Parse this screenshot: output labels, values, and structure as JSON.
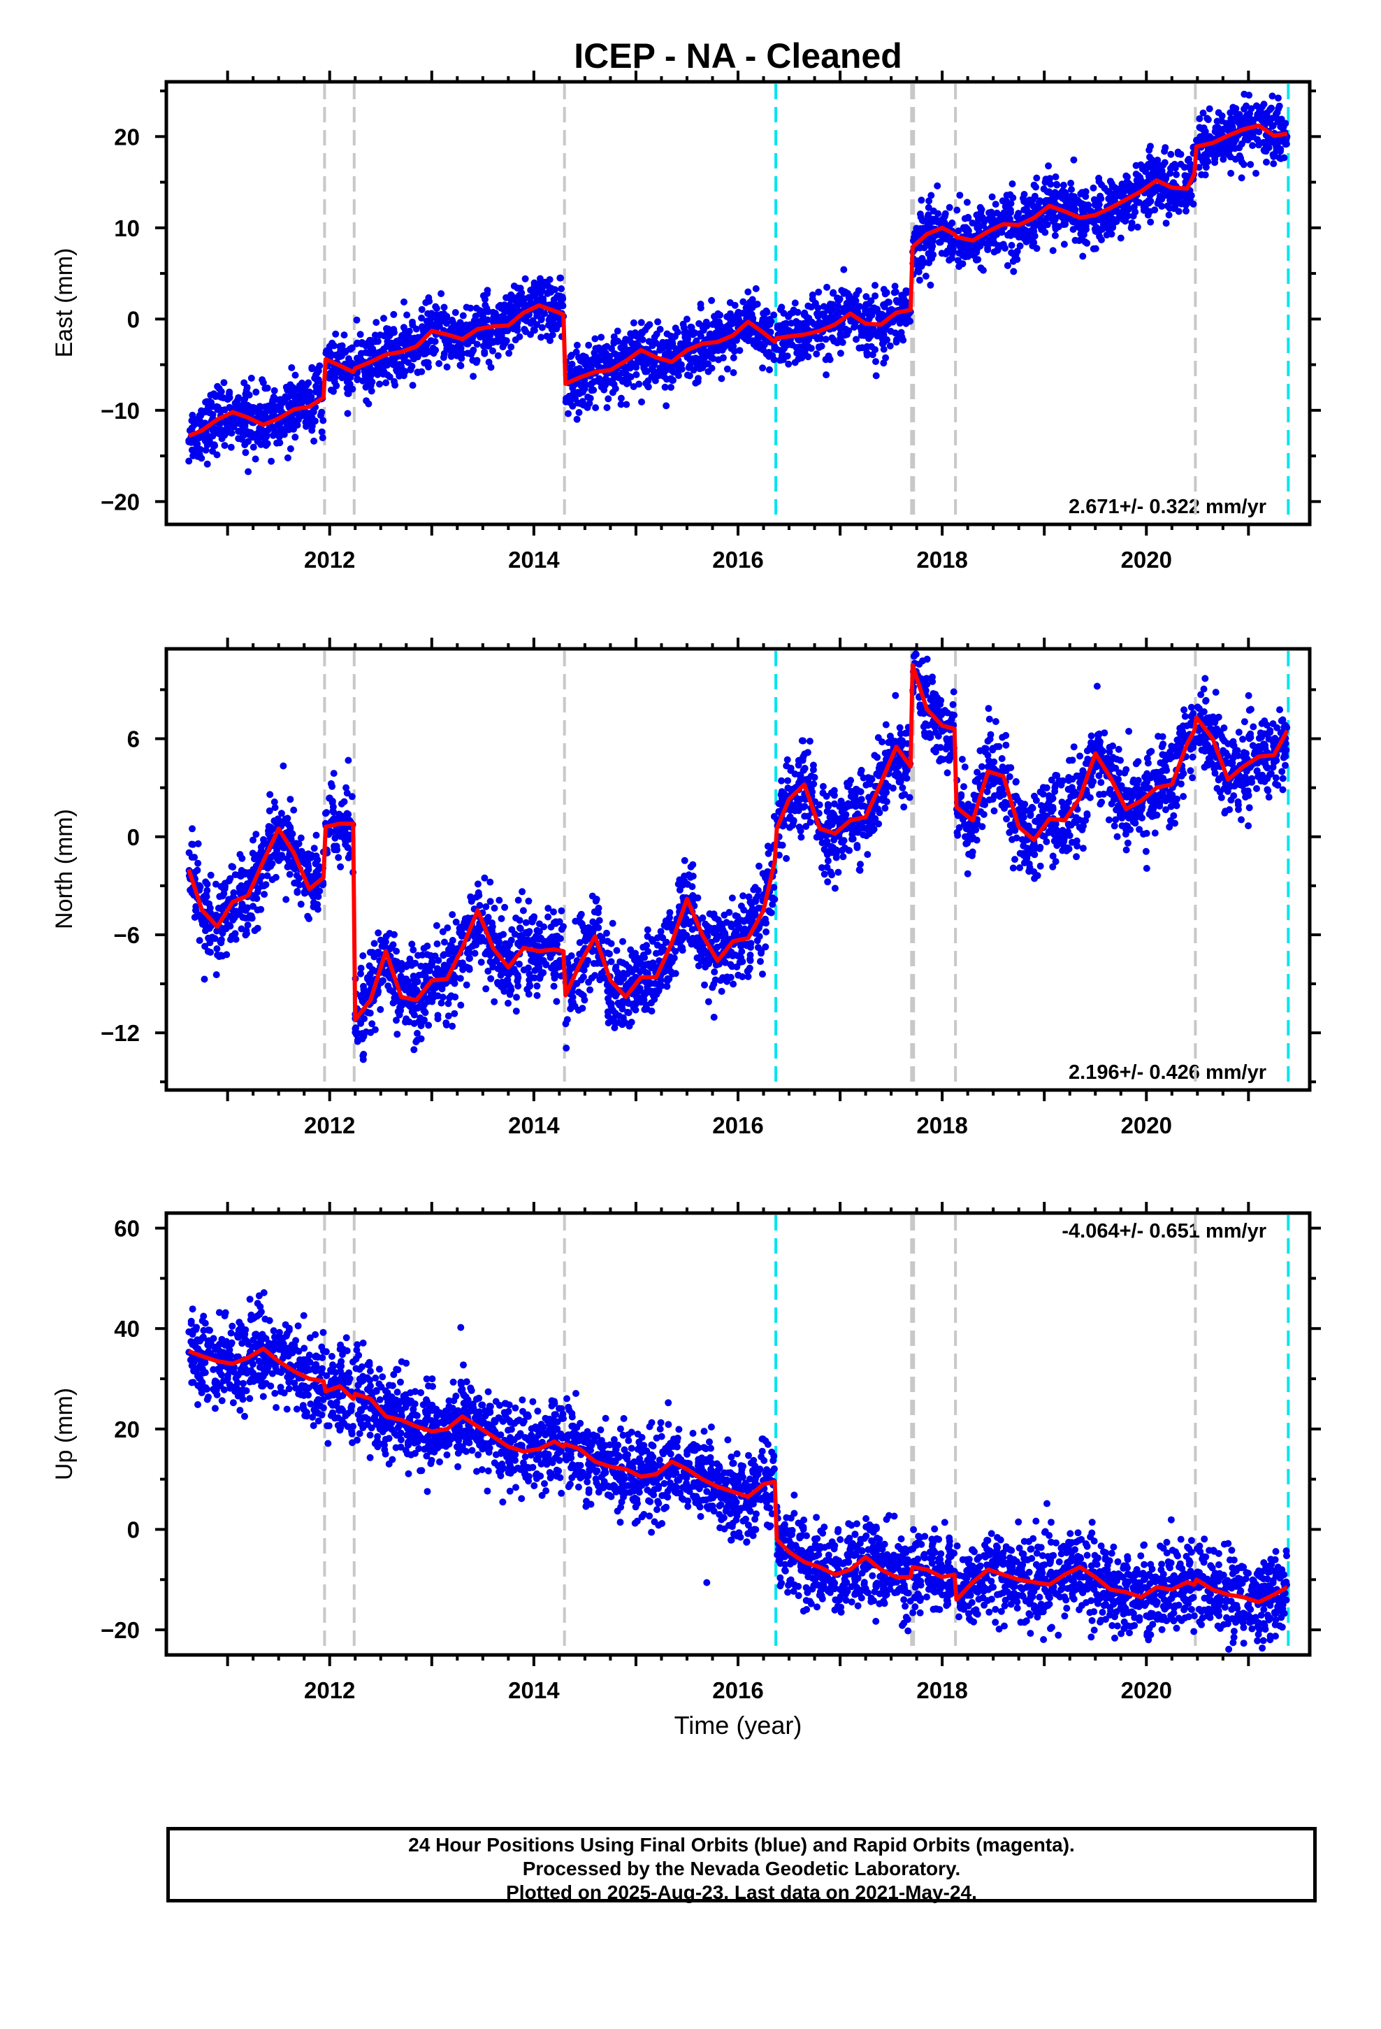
{
  "chart_data": {
    "type": "scatter",
    "title": "ICEP  - NA - Cleaned",
    "xlabel": "Time (year)",
    "xlim": [
      2010.4,
      2021.6
    ],
    "x_ticks": [
      "2012",
      "2014",
      "2016",
      "2018",
      "2020"
    ],
    "grid": false,
    "legend": "none",
    "colors": {
      "points": "#0000ee",
      "model": "#ff0000",
      "steps_gray": "#c8c8c8",
      "steps_cyan": "#00e5ee"
    },
    "vertical_lines": {
      "gray": [
        2011.95,
        2012.24,
        2014.3,
        2017.7,
        2017.72,
        2018.13,
        2020.48
      ],
      "cyan": [
        2016.37,
        2021.39
      ]
    },
    "panels": [
      {
        "name": "east",
        "ylabel": "East (mm)",
        "ylim": [
          -22.5,
          26
        ],
        "y_ticks": [
          "20",
          "10",
          "0",
          "−10",
          "−20"
        ],
        "rate": "2.671+/- 0.322 mm/yr",
        "model": {
          "x": [
            2010.62,
            2010.75,
            2010.9,
            2011.05,
            2011.2,
            2011.35,
            2011.5,
            2011.65,
            2011.8,
            2011.94,
            2011.96,
            2012.1,
            2012.23,
            2012.25,
            2012.4,
            2012.55,
            2012.7,
            2012.85,
            2013.0,
            2013.15,
            2013.3,
            2013.45,
            2013.6,
            2013.75,
            2013.9,
            2014.05,
            2014.2,
            2014.29,
            2014.31,
            2014.45,
            2014.6,
            2014.75,
            2014.9,
            2015.05,
            2015.2,
            2015.35,
            2015.5,
            2015.65,
            2015.8,
            2015.95,
            2016.1,
            2016.25,
            2016.36,
            2016.38,
            2016.5,
            2016.65,
            2016.8,
            2016.95,
            2017.1,
            2017.25,
            2017.4,
            2017.55,
            2017.69,
            2017.71,
            2017.85,
            2018.0,
            2018.12,
            2018.14,
            2018.3,
            2018.45,
            2018.6,
            2018.75,
            2018.9,
            2019.05,
            2019.2,
            2019.35,
            2019.5,
            2019.65,
            2019.8,
            2019.95,
            2020.1,
            2020.25,
            2020.4,
            2020.47,
            2020.49,
            2020.65,
            2020.8,
            2020.95,
            2021.1,
            2021.25,
            2021.38
          ],
          "y": [
            -12.8,
            -12.2,
            -11.0,
            -10.2,
            -10.8,
            -11.6,
            -10.9,
            -9.9,
            -9.6,
            -8.6,
            -4.4,
            -5.1,
            -5.8,
            -5.4,
            -4.7,
            -3.9,
            -3.6,
            -3.0,
            -1.3,
            -1.7,
            -2.2,
            -1.1,
            -0.8,
            -0.7,
            0.7,
            1.5,
            0.9,
            0.5,
            -7.1,
            -6.4,
            -5.8,
            -5.6,
            -4.6,
            -3.4,
            -4.2,
            -4.7,
            -3.4,
            -2.7,
            -2.5,
            -1.8,
            -0.3,
            -1.5,
            -2.5,
            -2.1,
            -1.9,
            -1.7,
            -1.3,
            -0.6,
            0.6,
            -0.5,
            -0.6,
            0.7,
            1.0,
            7.9,
            9.3,
            10.0,
            9.3,
            9.0,
            8.6,
            9.6,
            10.4,
            10.3,
            11.1,
            12.4,
            11.8,
            11.1,
            11.4,
            12.2,
            13.1,
            14.0,
            15.2,
            14.4,
            14.3,
            15.9,
            18.9,
            19.3,
            20.1,
            20.8,
            21.2,
            20.1,
            20.3
          ]
        }
      },
      {
        "name": "north",
        "ylabel": "North (mm)",
        "ylim": [
          -15.5,
          11.5
        ],
        "y_ticks": [
          "6",
          "0",
          "−6",
          "−12"
        ],
        "rate": "2.196+/- 0.426 mm/yr",
        "model": {
          "x": [
            2010.62,
            2010.75,
            2010.9,
            2011.05,
            2011.2,
            2011.35,
            2011.5,
            2011.65,
            2011.8,
            2011.94,
            2011.96,
            2012.1,
            2012.23,
            2012.25,
            2012.4,
            2012.55,
            2012.7,
            2012.85,
            2013.0,
            2013.15,
            2013.3,
            2013.45,
            2013.6,
            2013.75,
            2013.9,
            2014.05,
            2014.2,
            2014.29,
            2014.31,
            2014.45,
            2014.6,
            2014.75,
            2014.9,
            2015.05,
            2015.2,
            2015.35,
            2015.5,
            2015.65,
            2015.8,
            2015.95,
            2016.1,
            2016.25,
            2016.36,
            2016.38,
            2016.5,
            2016.65,
            2016.8,
            2016.95,
            2017.1,
            2017.25,
            2017.4,
            2017.55,
            2017.69,
            2017.71,
            2017.85,
            2018.0,
            2018.12,
            2018.14,
            2018.3,
            2018.45,
            2018.6,
            2018.75,
            2018.9,
            2019.05,
            2019.2,
            2019.35,
            2019.5,
            2019.65,
            2019.8,
            2019.95,
            2020.1,
            2020.25,
            2020.4,
            2020.47,
            2020.49,
            2020.65,
            2020.8,
            2020.95,
            2021.1,
            2021.25,
            2021.38
          ],
          "y": [
            -2.0,
            -4.5,
            -5.5,
            -4.0,
            -3.6,
            -1.5,
            0.5,
            -1.0,
            -3.2,
            -2.5,
            0.6,
            0.8,
            0.8,
            -11.2,
            -10.0,
            -7.0,
            -9.8,
            -10.0,
            -8.8,
            -8.7,
            -6.8,
            -4.5,
            -6.8,
            -8.0,
            -6.8,
            -7.0,
            -6.9,
            -7.0,
            -9.7,
            -7.8,
            -6.1,
            -8.8,
            -9.8,
            -8.6,
            -8.6,
            -6.5,
            -3.8,
            -6.0,
            -7.6,
            -6.4,
            -6.2,
            -4.5,
            -1.5,
            0.5,
            2.3,
            3.2,
            0.5,
            0.2,
            1.0,
            1.2,
            3.3,
            5.5,
            4.3,
            10.5,
            7.8,
            6.8,
            6.6,
            1.8,
            1.0,
            4.0,
            3.7,
            0.6,
            -0.2,
            1.1,
            1.0,
            2.4,
            5.1,
            3.6,
            1.7,
            2.2,
            3.0,
            3.2,
            5.7,
            6.5,
            7.3,
            6.0,
            3.5,
            4.3,
            4.9,
            5.0,
            6.5
          ]
        }
      },
      {
        "name": "up",
        "ylabel": "Up (mm)",
        "ylim": [
          -25,
          63
        ],
        "y_ticks": [
          "60",
          "40",
          "20",
          "0",
          "−20"
        ],
        "rate": "-4.064+/- 0.651 mm/yr",
        "model": {
          "x": [
            2010.62,
            2010.75,
            2010.9,
            2011.05,
            2011.2,
            2011.35,
            2011.5,
            2011.65,
            2011.8,
            2011.94,
            2011.96,
            2012.1,
            2012.23,
            2012.25,
            2012.4,
            2012.55,
            2012.7,
            2012.85,
            2013.0,
            2013.15,
            2013.3,
            2013.45,
            2013.6,
            2013.75,
            2013.9,
            2014.05,
            2014.2,
            2014.29,
            2014.31,
            2014.45,
            2014.6,
            2014.75,
            2014.9,
            2015.05,
            2015.2,
            2015.35,
            2015.5,
            2015.65,
            2015.8,
            2015.95,
            2016.1,
            2016.25,
            2016.36,
            2016.38,
            2016.5,
            2016.65,
            2016.8,
            2016.95,
            2017.1,
            2017.25,
            2017.4,
            2017.55,
            2017.69,
            2017.71,
            2017.85,
            2018.0,
            2018.12,
            2018.14,
            2018.3,
            2018.45,
            2018.6,
            2018.75,
            2018.9,
            2019.05,
            2019.2,
            2019.35,
            2019.5,
            2019.65,
            2019.8,
            2019.95,
            2020.1,
            2020.25,
            2020.4,
            2020.47,
            2020.49,
            2020.65,
            2020.8,
            2020.95,
            2021.1,
            2021.25,
            2021.38
          ],
          "y": [
            35.5,
            34.5,
            33.5,
            33.0,
            34.2,
            36.0,
            33.5,
            31.5,
            30.0,
            29.5,
            27.5,
            28.5,
            26.0,
            27.0,
            26.0,
            22.5,
            21.8,
            20.5,
            19.5,
            20.0,
            22.5,
            20.5,
            18.5,
            16.5,
            15.5,
            16.0,
            17.5,
            16.5,
            17.0,
            16.0,
            13.5,
            12.5,
            12.0,
            10.5,
            11.0,
            13.5,
            12.0,
            10.0,
            8.5,
            7.5,
            6.5,
            9.0,
            9.5,
            -2.0,
            -4.5,
            -6.5,
            -7.5,
            -9.0,
            -8.0,
            -5.5,
            -8.0,
            -9.5,
            -9.5,
            -7.5,
            -8.0,
            -9.5,
            -9.0,
            -14.0,
            -10.5,
            -8.0,
            -9.0,
            -10.0,
            -10.5,
            -11.0,
            -9.0,
            -7.5,
            -9.5,
            -12.0,
            -12.5,
            -13.5,
            -11.5,
            -12.0,
            -10.5,
            -11.0,
            -10.0,
            -12.0,
            -13.0,
            -13.5,
            -14.5,
            -13.0,
            -11.5
          ]
        }
      }
    ]
  },
  "footer": {
    "line1": "24 Hour Positions Using Final Orbits (blue) and Rapid Orbits (magenta).",
    "line2": "Processed by the Nevada Geodetic Laboratory.",
    "line3": "Plotted on 2025-Aug-23. Last data on 2021-May-24."
  }
}
